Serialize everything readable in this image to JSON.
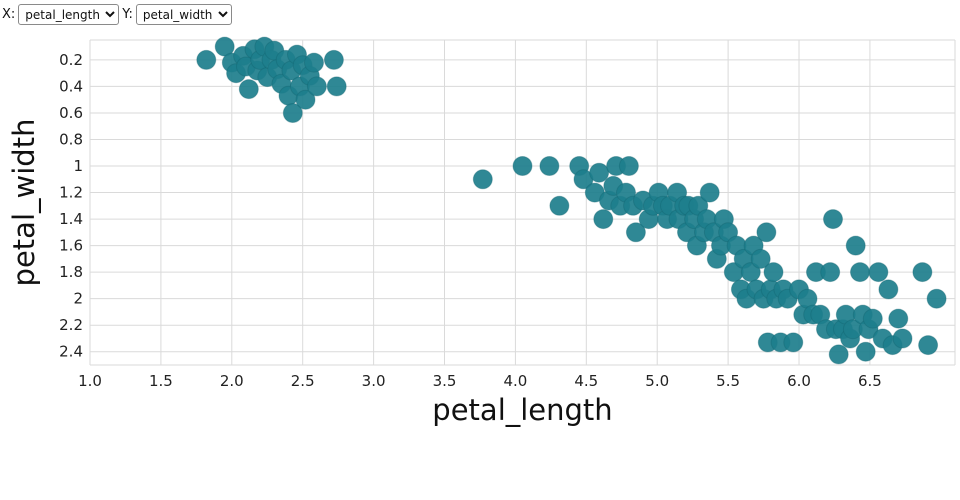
{
  "controls": {
    "x_label": "X:",
    "x_select": {
      "selected": "petal_length",
      "options": [
        "petal_length"
      ]
    },
    "y_label": "Y:",
    "y_select": {
      "selected": "petal_width",
      "options": [
        "petal_width"
      ]
    }
  },
  "chart_data": {
    "type": "scatter",
    "title": "",
    "xlabel": "petal_length",
    "ylabel": "petal_width",
    "xlim": [
      1.0,
      7.1
    ],
    "ylim": [
      0.05,
      2.5
    ],
    "y_axis_reversed": true,
    "grid": true,
    "legend": false,
    "x_ticks": [
      1.0,
      1.5,
      2.0,
      2.5,
      3.0,
      3.5,
      4.0,
      4.5,
      5.0,
      5.5,
      6.0,
      6.5
    ],
    "x_tick_labels": [
      "1.0",
      "1.5",
      "2.0",
      "2.5",
      "3.0",
      "3.5",
      "4.0",
      "4.5",
      "5.0",
      "5.5",
      "6.0",
      "6.5"
    ],
    "y_ticks": [
      0.2,
      0.4,
      0.6,
      0.8,
      1,
      1.2,
      1.4,
      1.6,
      1.8,
      2,
      2.2,
      2.4
    ],
    "y_tick_labels": [
      "0.2",
      "0.4",
      "0.6",
      "0.8",
      "1",
      "1.2",
      "1.4",
      "1.6",
      "1.8",
      "2",
      "2.2",
      "2.4"
    ],
    "point_color": "#1d7e8c",
    "point_stroke_color": "#10616e",
    "grid_color": "#dadada",
    "point_radius": 9.5,
    "points": [
      [
        1.82,
        0.2
      ],
      [
        1.95,
        0.1
      ],
      [
        2.0,
        0.22
      ],
      [
        2.03,
        0.3
      ],
      [
        2.08,
        0.17
      ],
      [
        2.1,
        0.25
      ],
      [
        2.12,
        0.42
      ],
      [
        2.16,
        0.12
      ],
      [
        2.18,
        0.28
      ],
      [
        2.2,
        0.2
      ],
      [
        2.23,
        0.1
      ],
      [
        2.25,
        0.33
      ],
      [
        2.28,
        0.2
      ],
      [
        2.3,
        0.13
      ],
      [
        2.32,
        0.27
      ],
      [
        2.35,
        0.38
      ],
      [
        2.38,
        0.2
      ],
      [
        2.4,
        0.47
      ],
      [
        2.42,
        0.28
      ],
      [
        2.43,
        0.6
      ],
      [
        2.46,
        0.16
      ],
      [
        2.48,
        0.4
      ],
      [
        2.5,
        0.24
      ],
      [
        2.52,
        0.5
      ],
      [
        2.55,
        0.32
      ],
      [
        2.58,
        0.22
      ],
      [
        2.6,
        0.4
      ],
      [
        2.72,
        0.2
      ],
      [
        2.74,
        0.4
      ],
      [
        3.77,
        1.1
      ],
      [
        4.05,
        1.0
      ],
      [
        4.24,
        1.0
      ],
      [
        4.31,
        1.3
      ],
      [
        4.45,
        1.0
      ],
      [
        4.48,
        1.1
      ],
      [
        4.56,
        1.2
      ],
      [
        4.59,
        1.05
      ],
      [
        4.62,
        1.4
      ],
      [
        4.66,
        1.26
      ],
      [
        4.69,
        1.15
      ],
      [
        4.71,
        1.0
      ],
      [
        4.74,
        1.3
      ],
      [
        4.78,
        1.2
      ],
      [
        4.8,
        1.0
      ],
      [
        4.83,
        1.3
      ],
      [
        4.85,
        1.5
      ],
      [
        4.9,
        1.26
      ],
      [
        4.94,
        1.4
      ],
      [
        4.97,
        1.3
      ],
      [
        5.01,
        1.2
      ],
      [
        5.04,
        1.3
      ],
      [
        5.07,
        1.4
      ],
      [
        5.09,
        1.3
      ],
      [
        5.14,
        1.2
      ],
      [
        5.15,
        1.4
      ],
      [
        5.19,
        1.3
      ],
      [
        5.21,
        1.5
      ],
      [
        5.22,
        1.3
      ],
      [
        5.26,
        1.4
      ],
      [
        5.28,
        1.6
      ],
      [
        5.29,
        1.3
      ],
      [
        5.33,
        1.5
      ],
      [
        5.35,
        1.4
      ],
      [
        5.37,
        1.2
      ],
      [
        5.4,
        1.5
      ],
      [
        5.42,
        1.7
      ],
      [
        5.45,
        1.6
      ],
      [
        5.47,
        1.4
      ],
      [
        5.5,
        1.5
      ],
      [
        5.54,
        1.8
      ],
      [
        5.56,
        1.6
      ],
      [
        5.59,
        1.93
      ],
      [
        5.61,
        1.7
      ],
      [
        5.63,
        2.0
      ],
      [
        5.66,
        1.8
      ],
      [
        5.68,
        1.6
      ],
      [
        5.7,
        1.93
      ],
      [
        5.73,
        1.7
      ],
      [
        5.75,
        2.0
      ],
      [
        5.77,
        1.5
      ],
      [
        5.78,
        2.33
      ],
      [
        5.8,
        1.93
      ],
      [
        5.82,
        1.8
      ],
      [
        5.84,
        2.0
      ],
      [
        5.87,
        2.33
      ],
      [
        5.89,
        1.93
      ],
      [
        5.92,
        2.0
      ],
      [
        5.96,
        2.33
      ],
      [
        6.0,
        1.93
      ],
      [
        6.03,
        2.12
      ],
      [
        6.06,
        2.0
      ],
      [
        6.1,
        2.12
      ],
      [
        6.12,
        1.8
      ],
      [
        6.15,
        2.12
      ],
      [
        6.19,
        2.23
      ],
      [
        6.22,
        1.8
      ],
      [
        6.24,
        1.4
      ],
      [
        6.26,
        2.23
      ],
      [
        6.28,
        2.42
      ],
      [
        6.31,
        2.23
      ],
      [
        6.33,
        2.12
      ],
      [
        6.36,
        2.3
      ],
      [
        6.38,
        2.23
      ],
      [
        6.4,
        1.6
      ],
      [
        6.43,
        1.8
      ],
      [
        6.45,
        2.12
      ],
      [
        6.47,
        2.4
      ],
      [
        6.49,
        2.23
      ],
      [
        6.52,
        2.15
      ],
      [
        6.56,
        1.8
      ],
      [
        6.59,
        2.3
      ],
      [
        6.63,
        1.93
      ],
      [
        6.66,
        2.35
      ],
      [
        6.7,
        2.15
      ],
      [
        6.73,
        2.3
      ],
      [
        6.87,
        1.8
      ],
      [
        6.91,
        2.35
      ],
      [
        6.97,
        2.0
      ]
    ]
  }
}
